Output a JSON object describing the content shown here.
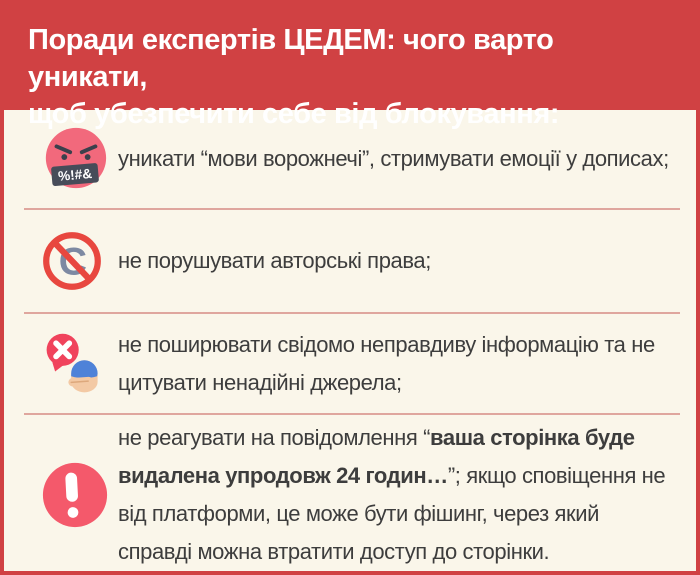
{
  "header": {
    "lines": [
      "Поради експертів ЦЕДЕМ: чого варто уникати,",
      "щоб убезпечити себе від блокування:"
    ]
  },
  "colors": {
    "banner_red": "#d04143",
    "background_cream": "#faf6ea",
    "divider_pink": "#dfa69e",
    "body_text": "#3d3d3d",
    "icon_face_pink": "#f2697c",
    "icon_prohibition_red": "#e8473f",
    "icon_copyright_gray": "#7d89a2",
    "icon_bubble_red": "#f0435c",
    "icon_warning_pink": "#f4596b"
  },
  "rows": [
    {
      "icon": "cursing-face-icon",
      "icon_label": "%!#&",
      "segments": [
        {
          "text": "уникати “мови ворожнечі”, стримувати емоції у дописах;",
          "bold": false
        }
      ]
    },
    {
      "icon": "no-copyright-icon",
      "segments": [
        {
          "text": "не порушувати авторські права;",
          "bold": false
        }
      ]
    },
    {
      "icon": "fake-news-icon",
      "segments": [
        {
          "text": "не поширювати свідомо неправдиву інформацію та не цитувати ненадійні джерела;",
          "bold": false
        }
      ]
    },
    {
      "icon": "warning-icon",
      "segments": [
        {
          "text": "не реагувати на повідомлення “",
          "bold": false
        },
        {
          "text": "ваша сторінка буде видалена упродовж 24 годин…",
          "bold": true
        },
        {
          "text": "”; якщо сповіщення не від платформи, це може бути фішинг, через який справді можна втратити доступ до сторінки.",
          "bold": false
        }
      ]
    }
  ]
}
